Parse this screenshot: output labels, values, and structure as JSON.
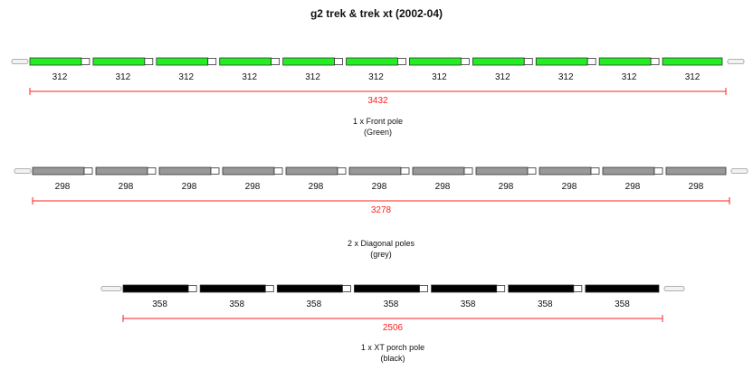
{
  "title": "g2 trek & trek xt (2002-04)",
  "colors": {
    "dimension_line": "#ff2020",
    "segment_stroke": "#333333",
    "sleeve_fill": "#ffffff",
    "tip_fill": "#f2f2f2",
    "tip_stroke": "#999999",
    "text": "#111111"
  },
  "poles": [
    {
      "id": "front-pole",
      "color": "#22ee22",
      "segment_length_label": "312",
      "segments": [
        "312",
        "312",
        "312",
        "312",
        "312",
        "312",
        "312",
        "312",
        "312",
        "312",
        "312"
      ],
      "total_length": "3432",
      "caption_line1": "1 x Front pole",
      "caption_line2": "(Green)"
    },
    {
      "id": "diagonal-pole",
      "color": "#999999",
      "segments": [
        "298",
        "298",
        "298",
        "298",
        "298",
        "298",
        "298",
        "298",
        "298",
        "298",
        "298"
      ],
      "total_length": "3278",
      "caption_line1": "2 x Diagonal poles",
      "caption_line2": "(grey)"
    },
    {
      "id": "porch-pole",
      "color": "#000000",
      "segments": [
        "358",
        "358",
        "358",
        "358",
        "358",
        "358",
        "358"
      ],
      "total_length": "2506",
      "caption_line1": "1 x XT porch pole",
      "caption_line2": "(black)"
    }
  ]
}
